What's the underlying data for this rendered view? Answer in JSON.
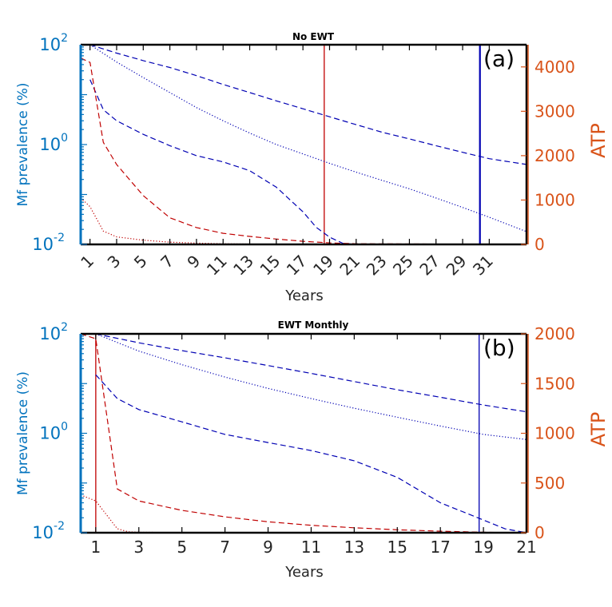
{
  "chart_data": [
    {
      "type": "line",
      "title": "No EWT",
      "panel_label": "(a)",
      "xlabel": "Years",
      "ylabel_left": "Mf prevalence (%)",
      "ylabel_right": "ATP",
      "left_scale": "log",
      "ylim_left": [
        0.01,
        100
      ],
      "yticks_left": [
        {
          "base": "10",
          "exp": "-2",
          "value": 0.01
        },
        {
          "base": "10",
          "exp": "0",
          "value": 1
        },
        {
          "base": "10",
          "exp": "2",
          "value": 100
        }
      ],
      "ylim_right": [
        0,
        4500
      ],
      "yticks_right": [
        "0",
        "1000",
        "2000",
        "3000",
        "4000"
      ],
      "xlim": [
        0.3,
        33.8
      ],
      "xtick_labels": [
        "1",
        "3",
        "5",
        "7",
        "9",
        "11",
        "13",
        "15",
        "17",
        "19",
        "21",
        "23",
        "25",
        "27",
        "29",
        "31"
      ],
      "xtick_values": [
        1,
        3,
        5,
        7,
        9,
        11,
        13,
        15,
        17,
        19,
        21,
        23,
        25,
        27,
        29,
        31
      ],
      "vertical_lines": [
        {
          "x": 18.6,
          "color": "#C00000"
        },
        {
          "x": 30.3,
          "color": "#0000B3"
        }
      ],
      "series": [
        {
          "axis": "left",
          "style": "dashed",
          "color": "#0000B3",
          "x": [
            1,
            3,
            5,
            7,
            9,
            11,
            13,
            15,
            17,
            19,
            21,
            23,
            25,
            27,
            29,
            31,
            33.8
          ],
          "y": [
            100,
            68,
            48,
            35,
            24,
            16,
            11,
            7.5,
            5.2,
            3.6,
            2.5,
            1.75,
            1.3,
            0.95,
            0.7,
            0.52,
            0.4
          ]
        },
        {
          "axis": "left",
          "style": "dotted",
          "color": "#0000B3",
          "x": [
            1,
            3,
            5,
            7,
            9,
            11,
            13,
            15,
            17,
            19,
            21,
            23,
            25,
            27,
            29,
            31,
            33.8
          ],
          "y": [
            100,
            45,
            22,
            11,
            5.5,
            3,
            1.7,
            1,
            0.65,
            0.42,
            0.28,
            0.19,
            0.13,
            0.085,
            0.055,
            0.035,
            0.018
          ]
        },
        {
          "axis": "left",
          "style": "dashed",
          "color": "#0000B3",
          "x": [
            1,
            2,
            3,
            5,
            7,
            9,
            11,
            13,
            15,
            17,
            18,
            19,
            20,
            21,
            33.8
          ],
          "y": [
            20,
            5,
            3,
            1.6,
            0.95,
            0.6,
            0.45,
            0.3,
            0.14,
            0.045,
            0.022,
            0.014,
            0.0105,
            0.01,
            0.01
          ]
        },
        {
          "axis": "right",
          "style": "dashed",
          "color": "#C00000",
          "x": [
            0.3,
            1,
            2,
            3,
            4,
            5,
            7,
            9,
            11,
            13,
            15,
            17,
            19,
            21,
            33.8
          ],
          "y": [
            4200,
            4100,
            2300,
            1800,
            1450,
            1100,
            600,
            380,
            250,
            180,
            120,
            70,
            35,
            15,
            0
          ]
        },
        {
          "axis": "right",
          "style": "dotted",
          "color": "#C00000",
          "x": [
            0.3,
            1,
            2,
            3,
            5,
            7,
            9,
            11,
            13,
            15,
            17,
            33.8
          ],
          "y": [
            1050,
            850,
            300,
            170,
            95,
            50,
            28,
            15,
            8,
            3,
            0,
            0
          ]
        }
      ]
    },
    {
      "type": "line",
      "title": "EWT Monthly",
      "panel_label": "(b)",
      "xlabel": "Years",
      "ylabel_left": "Mf prevalence (%)",
      "ylabel_right": "ATP",
      "left_scale": "log",
      "ylim_left": [
        0.01,
        100
      ],
      "yticks_left": [
        {
          "base": "10",
          "exp": "-2",
          "value": 0.01
        },
        {
          "base": "10",
          "exp": "0",
          "value": 1
        },
        {
          "base": "10",
          "exp": "2",
          "value": 100
        }
      ],
      "ylim_right": [
        0,
        2000
      ],
      "yticks_right": [
        "0",
        "500",
        "1000",
        "1500",
        "2000"
      ],
      "xlim": [
        0.3,
        21
      ],
      "xtick_labels": [
        "1",
        "3",
        "5",
        "7",
        "9",
        "11",
        "13",
        "15",
        "17",
        "19",
        "21"
      ],
      "xtick_values": [
        1,
        3,
        5,
        7,
        9,
        11,
        13,
        15,
        17,
        19,
        21
      ],
      "vertical_lines": [
        {
          "x": 1,
          "color": "#C00000"
        },
        {
          "x": 18.8,
          "color": "#0000B3"
        }
      ],
      "series": [
        {
          "axis": "left",
          "style": "dashed",
          "color": "#0000B3",
          "x": [
            1,
            3,
            5,
            7,
            9,
            11,
            13,
            15,
            17,
            19,
            21
          ],
          "y": [
            100,
            66,
            46,
            33,
            23,
            16,
            11,
            7.5,
            5.3,
            3.7,
            2.7
          ]
        },
        {
          "axis": "left",
          "style": "dotted",
          "color": "#0000B3",
          "x": [
            1,
            3,
            5,
            7,
            9,
            11,
            13,
            15,
            17,
            19,
            21
          ],
          "y": [
            100,
            45,
            24,
            13.5,
            8,
            5,
            3.2,
            2.1,
            1.4,
            0.95,
            0.75
          ]
        },
        {
          "axis": "left",
          "style": "dashed",
          "color": "#0000B3",
          "x": [
            1,
            2,
            3,
            5,
            7,
            9,
            11,
            13,
            15,
            17,
            19,
            20,
            21
          ],
          "y": [
            15,
            5,
            3,
            1.7,
            0.95,
            0.65,
            0.45,
            0.28,
            0.13,
            0.04,
            0.018,
            0.012,
            0.01
          ]
        },
        {
          "axis": "right",
          "style": "dashed",
          "color": "#C00000",
          "x": [
            0.3,
            1,
            2,
            3,
            5,
            7,
            9,
            11,
            13,
            15,
            17,
            19,
            21
          ],
          "y": [
            2000,
            1950,
            440,
            320,
            225,
            160,
            110,
            75,
            50,
            30,
            15,
            5,
            0
          ]
        },
        {
          "axis": "right",
          "style": "dotted",
          "color": "#C00000",
          "x": [
            0.3,
            1,
            2,
            2.5,
            3,
            5,
            21
          ],
          "y": [
            380,
            320,
            40,
            10,
            5,
            2,
            0
          ]
        }
      ]
    }
  ]
}
